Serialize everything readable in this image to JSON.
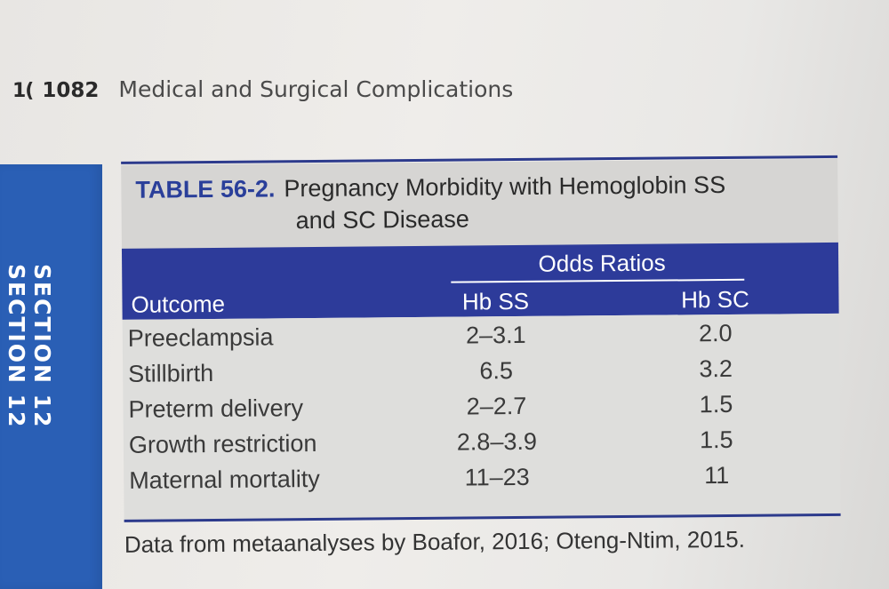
{
  "header": {
    "prev_page_fragment": "1(",
    "page_number": "1082",
    "running_title": "Medical and Surgical Complications"
  },
  "section_tab": {
    "label": "SECTION 12",
    "label_repeat": "SECTION 12"
  },
  "table": {
    "number": "TABLE 56-2.",
    "title_line1": "Pregnancy Morbidity with Hemoglobin SS",
    "title_line2": "and SC Disease",
    "group_header": "Odds Ratios",
    "columns": [
      "Outcome",
      "Hb SS",
      "Hb SC"
    ],
    "rows": [
      {
        "outcome": "Preeclampsia",
        "hb_ss": "2–3.1",
        "hb_sc": "2.0"
      },
      {
        "outcome": "Stillbirth",
        "hb_ss": "6.5",
        "hb_sc": "3.2"
      },
      {
        "outcome": "Preterm delivery",
        "hb_ss": "2–2.7",
        "hb_sc": "1.5"
      },
      {
        "outcome": "Growth restriction",
        "hb_ss": "2.8–3.9",
        "hb_sc": "1.5"
      },
      {
        "outcome": "Maternal mortality",
        "hb_ss": "11–23",
        "hb_sc": "11"
      }
    ],
    "footnote": "Data from metaanalyses by Boafor, 2016; Oteng-Ntim, 2015."
  },
  "colors": {
    "header_blue": "#2d3b9a",
    "section_tab_blue": "#2a5fb5",
    "table_number_blue": "#2a3f9a"
  }
}
